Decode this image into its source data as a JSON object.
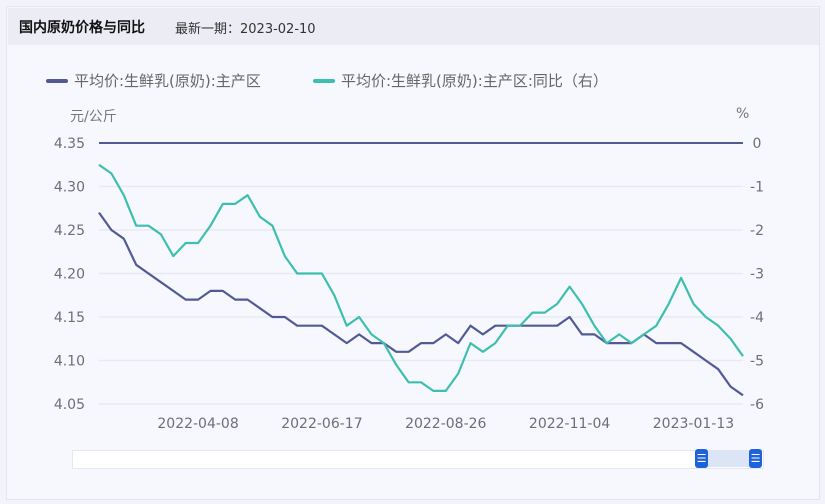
{
  "header": {
    "title": "国内原奶价格与同比",
    "latest": "最新一期：2023-02-10"
  },
  "chart_data": {
    "type": "line",
    "title": "国内原奶价格与同比",
    "x_start": "2022-02-11",
    "x_step_days": 7,
    "x_tick_labels": [
      "2022-04-08",
      "2022-06-17",
      "2022-08-26",
      "2022-11-04",
      "2023-01-13"
    ],
    "x_tick_index": [
      8,
      18,
      28,
      38,
      48
    ],
    "left_axis": {
      "label": "元/公斤",
      "range": [
        4.05,
        4.35
      ],
      "ticks": [
        "4.35",
        "4.30",
        "4.25",
        "4.20",
        "4.15",
        "4.10",
        "4.05"
      ]
    },
    "right_axis": {
      "label": "%",
      "range": [
        -6,
        0
      ],
      "ticks": [
        "0",
        "-1",
        "-2",
        "-3",
        "-4",
        "-5",
        "-6"
      ]
    },
    "grid": true,
    "legend_position": "top-left",
    "series": [
      {
        "name": "平均价:生鲜乳(原奶):主产区",
        "axis": "left",
        "color": "#525a94",
        "values": [
          4.27,
          4.25,
          4.24,
          4.21,
          4.2,
          4.19,
          4.18,
          4.17,
          4.17,
          4.18,
          4.18,
          4.17,
          4.17,
          4.16,
          4.15,
          4.15,
          4.14,
          4.14,
          4.14,
          4.13,
          4.12,
          4.13,
          4.12,
          4.12,
          4.11,
          4.11,
          4.12,
          4.12,
          4.13,
          4.12,
          4.14,
          4.13,
          4.14,
          4.14,
          4.14,
          4.14,
          4.14,
          4.14,
          4.15,
          4.13,
          4.13,
          4.12,
          4.12,
          4.12,
          4.13,
          4.12,
          4.12,
          4.12,
          4.11,
          4.1,
          4.09,
          4.07,
          4.06
        ]
      },
      {
        "name": "平均价:生鲜乳(原奶):主产区:同比（右）",
        "axis": "right",
        "color": "#3dbfb0",
        "values": [
          -0.5,
          -0.7,
          -1.2,
          -1.9,
          -1.9,
          -2.1,
          -2.6,
          -2.3,
          -2.3,
          -1.9,
          -1.4,
          -1.4,
          -1.2,
          -1.7,
          -1.9,
          -2.6,
          -3.0,
          -3.0,
          -3.0,
          -3.5,
          -4.2,
          -4.0,
          -4.4,
          -4.6,
          -5.1,
          -5.5,
          -5.5,
          -5.7,
          -5.7,
          -5.3,
          -4.6,
          -4.8,
          -4.6,
          -4.2,
          -4.2,
          -3.9,
          -3.9,
          -3.7,
          -3.3,
          -3.7,
          -4.2,
          -4.6,
          -4.4,
          -4.6,
          -4.4,
          -4.2,
          -3.7,
          -3.1,
          -3.7,
          -4.0,
          -4.2,
          -4.5,
          -4.9
        ]
      }
    ]
  },
  "slider": {
    "handle_glyph": "☰"
  }
}
